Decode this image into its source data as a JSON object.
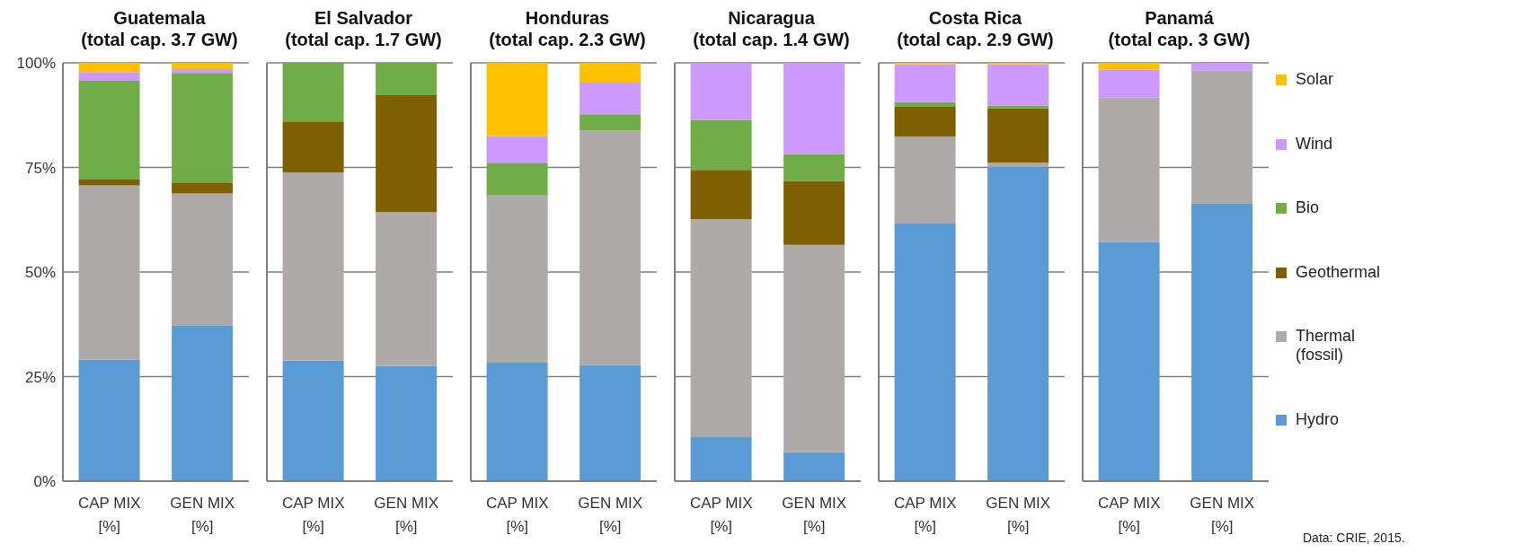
{
  "chart_data": [
    {
      "type": "bar",
      "stacked": true,
      "title": "Guatemala",
      "subtitle": "(total cap. 3.7 GW)",
      "categories": [
        "CAP MIX [%]",
        "GEN MIX [%]"
      ],
      "ylim": [
        0,
        100
      ],
      "yticks": [
        {
          "value": 0,
          "label": "0%"
        },
        {
          "value": 25,
          "label": "25%"
        },
        {
          "value": 50,
          "label": "50%"
        },
        {
          "value": 75,
          "label": "75%"
        },
        {
          "value": 100,
          "label": "100%"
        }
      ],
      "grid": "y",
      "series": [
        {
          "color": "#5b9bd5",
          "values": [
            29.1,
            37.3
          ]
        },
        {
          "color": "#aeaaaa",
          "values": [
            41.6,
            31.5
          ]
        },
        {
          "color": "#7f6000",
          "values": [
            1.4,
            2.6
          ]
        },
        {
          "color": "#70ad47",
          "values": [
            23.6,
            26.2
          ]
        },
        {
          "color": "#cc99ff",
          "values": [
            2.1,
            0.9
          ]
        },
        {
          "color": "#ffc000",
          "values": [
            2.2,
            1.5
          ]
        }
      ]
    },
    {
      "type": "bar",
      "stacked": true,
      "title": "El Salvador",
      "subtitle": "(total cap. 1.7 GW)",
      "categories": [
        "CAP MIX [%]",
        "GEN MIX [%]"
      ],
      "ylim": [
        0,
        100
      ],
      "yticks": [
        0,
        25,
        50,
        75,
        100
      ],
      "grid": "y",
      "tick_labels": "x",
      "series": [
        {
          "color": "#5b9bd5",
          "values": [
            28.8,
            27.6
          ]
        },
        {
          "color": "#aeaaaa",
          "values": [
            45.0,
            36.7
          ]
        },
        {
          "color": "#7f6000",
          "values": [
            12.2,
            28.0
          ]
        },
        {
          "color": "#70ad47",
          "values": [
            14.0,
            7.7
          ]
        },
        {
          "color": "#cc99ff",
          "values": [
            0,
            0
          ]
        },
        {
          "color": "#ffc000",
          "values": [
            0,
            0
          ]
        }
      ]
    },
    {
      "type": "bar",
      "stacked": true,
      "title": "Honduras",
      "subtitle": "(total cap. 2.3 GW)",
      "categories": [
        "CAP MIX [%]",
        "GEN MIX [%]"
      ],
      "ylim": [
        0,
        100
      ],
      "yticks": [
        0,
        25,
        50,
        75,
        100
      ],
      "grid": "y",
      "tick_labels": "x",
      "series": [
        {
          "color": "#5b9bd5",
          "values": [
            28.3,
            27.8
          ]
        },
        {
          "color": "#aeaaaa",
          "values": [
            40.0,
            56.0
          ]
        },
        {
          "color": "#7f6000",
          "values": [
            0,
            0
          ]
        },
        {
          "color": "#70ad47",
          "values": [
            7.8,
            3.9
          ]
        },
        {
          "color": "#cc99ff",
          "values": [
            6.4,
            7.6
          ]
        },
        {
          "color": "#ffc000",
          "values": [
            17.5,
            4.7
          ]
        }
      ]
    },
    {
      "type": "bar",
      "stacked": true,
      "title": "Nicaragua",
      "subtitle": "(total cap. 1.4 GW)",
      "categories": [
        "CAP MIX [%]",
        "GEN MIX [%]"
      ],
      "ylim": [
        0,
        100
      ],
      "yticks": [
        0,
        25,
        50,
        75,
        100
      ],
      "grid": "y",
      "tick_labels": "x",
      "series": [
        {
          "color": "#5b9bd5",
          "values": [
            10.5,
            6.9
          ]
        },
        {
          "color": "#aeaaaa",
          "values": [
            52.1,
            49.6
          ]
        },
        {
          "color": "#7f6000",
          "values": [
            11.8,
            15.3
          ]
        },
        {
          "color": "#70ad47",
          "values": [
            12.0,
            6.4
          ]
        },
        {
          "color": "#cc99ff",
          "values": [
            13.6,
            21.8
          ]
        },
        {
          "color": "#ffc000",
          "values": [
            0,
            0
          ]
        }
      ]
    },
    {
      "type": "bar",
      "stacked": true,
      "title": "Costa Rica",
      "subtitle": "(total cap. 2.9 GW)",
      "categories": [
        "CAP MIX [%]",
        "GEN MIX [%]"
      ],
      "ylim": [
        0,
        100
      ],
      "yticks": [
        0,
        25,
        50,
        75,
        100
      ],
      "grid": "y",
      "tick_labels": "x",
      "series": [
        {
          "color": "#5b9bd5",
          "values": [
            61.6,
            75.1
          ]
        },
        {
          "color": "#aeaaaa",
          "values": [
            20.8,
            1.0
          ]
        },
        {
          "color": "#7f6000",
          "values": [
            7.1,
            13.0
          ]
        },
        {
          "color": "#70ad47",
          "values": [
            1.1,
            0.7
          ]
        },
        {
          "color": "#cc99ff",
          "values": [
            9.1,
            9.9
          ]
        },
        {
          "color": "#ffc000",
          "values": [
            0.3,
            0.3
          ]
        }
      ]
    },
    {
      "type": "bar",
      "stacked": true,
      "title": "Panamá",
      "subtitle": "(total cap. 3 GW)",
      "categories": [
        "CAP MIX [%]",
        "GEN MIX [%]"
      ],
      "ylim": [
        0,
        100
      ],
      "yticks": [
        0,
        25,
        50,
        75,
        100
      ],
      "grid": "y",
      "tick_labels": "x",
      "legend": "right",
      "annotations": [
        "Data: CRIE, 2015."
      ],
      "series": [
        {
          "name": "Hydro",
          "color": "#5b9bd5",
          "values": [
            57.2,
            66.3
          ]
        },
        {
          "name": "Thermal (fossil)",
          "color": "#aeaaaa",
          "values": [
            34.5,
            31.8
          ]
        },
        {
          "name": "Geothermal",
          "color": "#7f6000",
          "values": [
            0,
            0
          ]
        },
        {
          "name": "Bio",
          "color": "#70ad47",
          "values": [
            0,
            0
          ]
        },
        {
          "name": "Wind",
          "color": "#cc99ff",
          "values": [
            6.7,
            1.9
          ]
        },
        {
          "name": "Solar",
          "color": "#ffc000",
          "values": [
            1.6,
            0
          ]
        }
      ]
    }
  ]
}
